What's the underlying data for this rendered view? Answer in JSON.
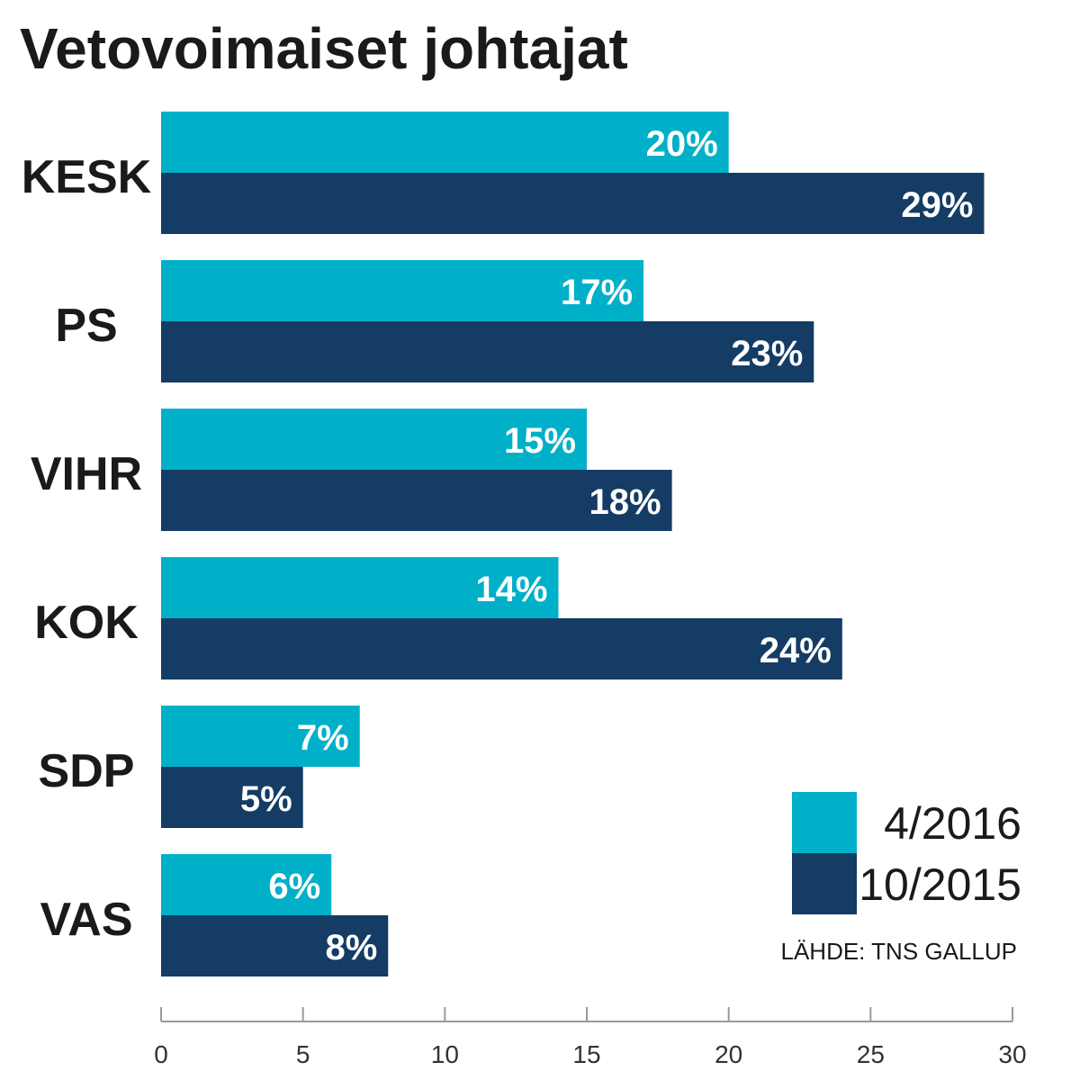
{
  "chart_data": {
    "type": "bar",
    "orientation": "horizontal",
    "title": "Vetovoimaiset johtajat",
    "categories": [
      "KESK",
      "PS",
      "VIHR",
      "KOK",
      "SDP",
      "VAS"
    ],
    "series": [
      {
        "name": "4/2016",
        "color": "#00B0C8",
        "values": [
          20,
          17,
          15,
          14,
          7,
          6
        ],
        "labels": [
          "20%",
          "17%",
          "15%",
          "14%",
          "7%",
          "6%"
        ]
      },
      {
        "name": "10/2015",
        "color": "#143C64",
        "values": [
          29,
          23,
          18,
          24,
          5,
          8
        ],
        "labels": [
          "29%",
          "23%",
          "18%",
          "24%",
          "5%",
          "8%"
        ]
      }
    ],
    "xlim": [
      0,
      30
    ],
    "x_ticks": [
      "0",
      "5",
      "10",
      "15",
      "20",
      "25",
      "30"
    ],
    "legend_position": "bottom-right",
    "source": "LÄHDE: TNS GALLUP",
    "grid": false
  }
}
